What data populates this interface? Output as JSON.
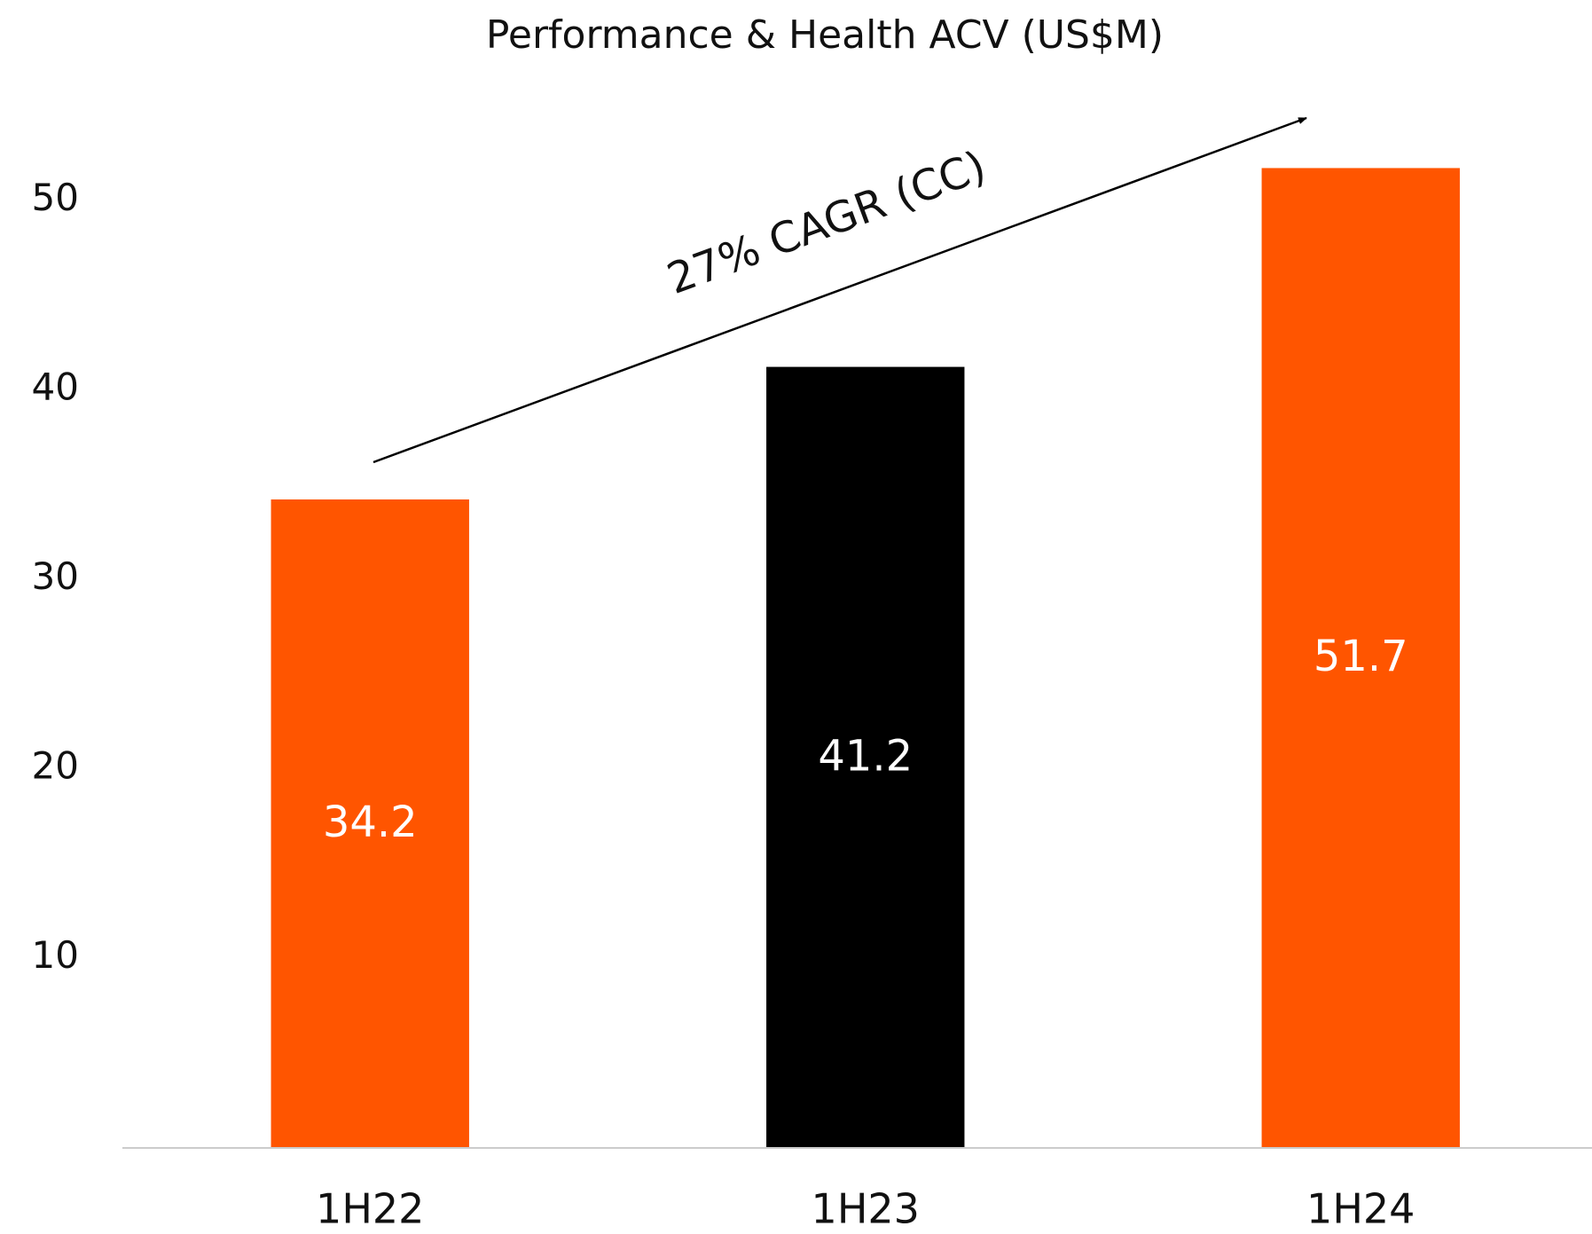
{
  "chart_data": {
    "type": "bar",
    "title": "Performance & Health ACV (US$M)",
    "categories": [
      "1H22",
      "1H23",
      "1H24"
    ],
    "values": [
      34.2,
      41.2,
      51.7
    ],
    "colors": [
      "#ff5500",
      "#000000",
      "#ff5500"
    ],
    "ylim": [
      0,
      55
    ],
    "yticks": [
      10,
      20,
      30,
      40,
      50
    ],
    "grid": false,
    "annotation": "27% CAGR (CC)"
  }
}
